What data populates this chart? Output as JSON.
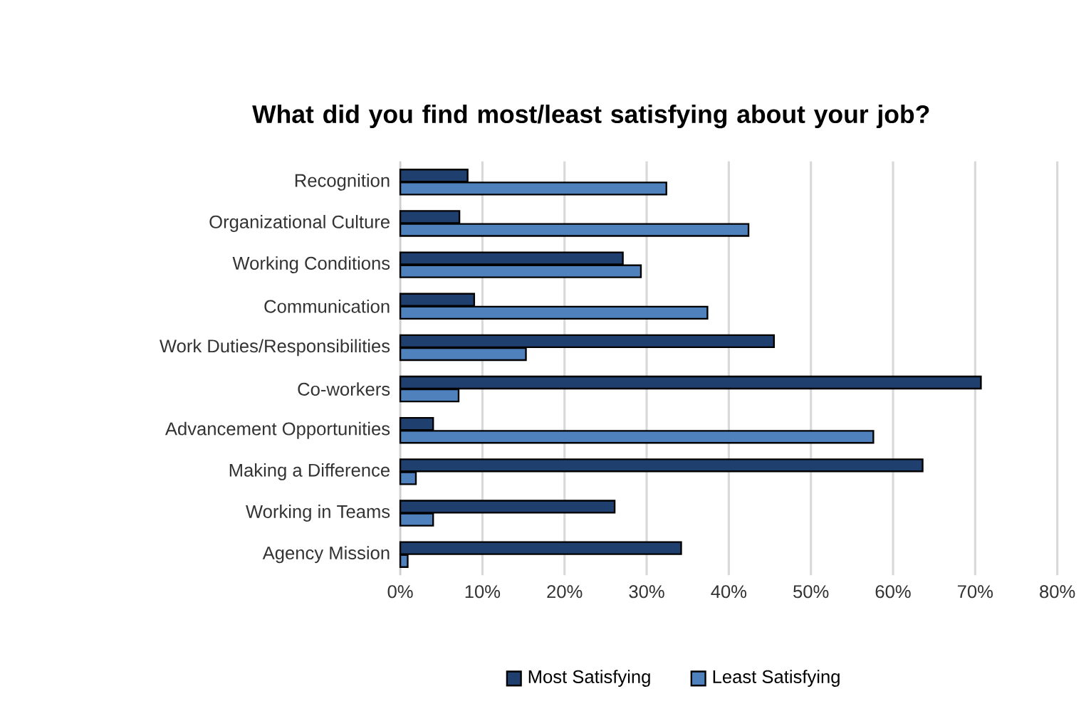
{
  "chart_data": {
    "type": "bar",
    "orientation": "horizontal",
    "title": "What did you find most/least satisfying about your job?",
    "categories": [
      "Recognition",
      "Organizational Culture",
      "Working Conditions",
      "Communication",
      "Work Duties/Responsibilities",
      "Co-workers",
      "Advancement Opportunities",
      "Making a Difference",
      "Working in Teams",
      "Agency Mission"
    ],
    "series": [
      {
        "name": "Most Satisfying",
        "color": "#1f3f6e",
        "values": [
          8.2,
          7.2,
          27.1,
          9.0,
          45.5,
          70.7,
          4.0,
          63.6,
          26.1,
          34.2
        ]
      },
      {
        "name": "Least Satisfying",
        "color": "#4f81bd",
        "values": [
          32.4,
          42.4,
          29.3,
          37.4,
          15.3,
          7.1,
          57.6,
          1.9,
          4.0,
          0.9
        ]
      }
    ],
    "xlim": [
      0,
      80
    ],
    "xticks": [
      {
        "value": 0,
        "label": "0%"
      },
      {
        "value": 10,
        "label": "10%"
      },
      {
        "value": 20,
        "label": "20%"
      },
      {
        "value": 30,
        "label": "30%"
      },
      {
        "value": 40,
        "label": "40%"
      },
      {
        "value": 50,
        "label": "50%"
      },
      {
        "value": 60,
        "label": "60%"
      },
      {
        "value": 70,
        "label": "70%"
      },
      {
        "value": 80,
        "label": "80%"
      }
    ],
    "grid": "x",
    "legend": "bottom"
  }
}
